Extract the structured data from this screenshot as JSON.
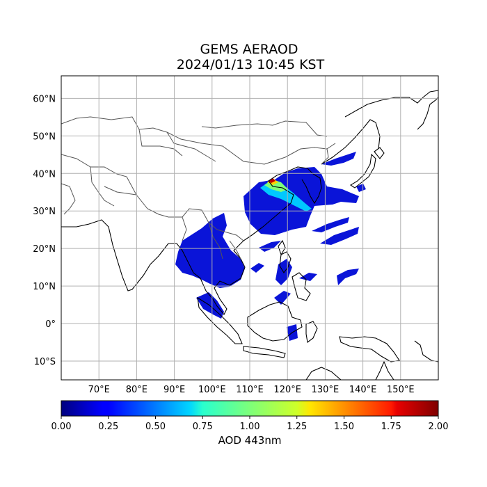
{
  "title": {
    "line1": "GEMS AERAOD",
    "line2": "2024/01/13 10:45 KST"
  },
  "map": {
    "lon_range": [
      60,
      160
    ],
    "lat_range": [
      -15,
      66
    ],
    "lat_ticks": [
      {
        "value": 60,
        "label": "60°N"
      },
      {
        "value": 50,
        "label": "50°N"
      },
      {
        "value": 40,
        "label": "40°N"
      },
      {
        "value": 30,
        "label": "30°N"
      },
      {
        "value": 20,
        "label": "20°N"
      },
      {
        "value": 10,
        "label": "10°N"
      },
      {
        "value": 0,
        "label": "0°"
      },
      {
        "value": -10,
        "label": "10°S"
      }
    ],
    "lon_ticks": [
      {
        "value": 70,
        "label": "70°E"
      },
      {
        "value": 80,
        "label": "80°E"
      },
      {
        "value": 90,
        "label": "90°E"
      },
      {
        "value": 100,
        "label": "100°E"
      },
      {
        "value": 110,
        "label": "110°E"
      },
      {
        "value": 120,
        "label": "120°E"
      },
      {
        "value": 130,
        "label": "130°E"
      },
      {
        "value": 140,
        "label": "140°E"
      },
      {
        "value": 150,
        "label": "150°E"
      }
    ],
    "grid": true
  },
  "colorbar": {
    "label": "AOD 443nm",
    "range": [
      0,
      2
    ],
    "colormap": "jet",
    "ticks": [
      "0.00",
      "0.25",
      "0.50",
      "0.75",
      "1.00",
      "1.25",
      "1.50",
      "1.75",
      "2.00"
    ]
  }
}
